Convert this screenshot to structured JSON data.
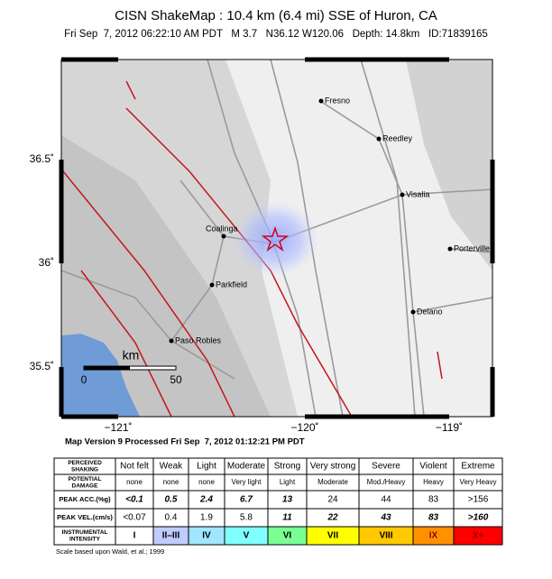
{
  "header": {
    "title": "CISN ShakeMap : 10.4 km (6.4 mi) SSE of Huron, CA",
    "subtitle": "Fri Sep  7, 2012 06:22:10 AM PDT   M 3.7   N36.12 W120.06   Depth: 14.8km   ID:71839165"
  },
  "map": {
    "lat_labels": [
      "36.5˚",
      "36˚",
      "35.5˚"
    ],
    "lon_labels": [
      "−121˚",
      "−120˚",
      "−119˚"
    ],
    "cities": [
      "Fresno",
      "Reedley",
      "Visalia",
      "Coalinga",
      "Porterville",
      "Parkfield",
      "Delano",
      "Paso Robles"
    ],
    "scale": {
      "unit": "km",
      "labels": [
        "0",
        "50"
      ]
    }
  },
  "map_version": "Map Version 9 Processed Fri Sep  7, 2012 01:12:21 PM PDT",
  "table": {
    "row_headers": [
      [
        "PERCEIVED",
        "SHAKING"
      ],
      [
        "POTENTIAL",
        "DAMAGE"
      ],
      [
        "PEAK ACC.(%g)"
      ],
      [
        "PEAK VEL.(cm/s)"
      ],
      [
        "INSTRUMENTAL",
        "INTENSITY"
      ]
    ],
    "rows": [
      [
        "Not felt",
        "Weak",
        "Light",
        "Moderate",
        "Strong",
        "Very strong",
        "Severe",
        "Violent",
        "Extreme"
      ],
      [
        "none",
        "none",
        "none",
        "Very light",
        "Light",
        "Moderate",
        "Mod./Heavy",
        "Heavy",
        "Very Heavy"
      ],
      [
        "<0.1",
        "0.5",
        "2.4",
        "6.7",
        "13",
        "24",
        "44",
        "83",
        ">156"
      ],
      [
        "<0.07",
        "0.4",
        "1.9",
        "5.8",
        "11",
        "22",
        "43",
        "83",
        ">160"
      ],
      [
        "I",
        "II–III",
        "IV",
        "V",
        "VI",
        "VII",
        "VIII",
        "IX",
        "X+"
      ]
    ],
    "intensity_colors": [
      "#ffffff",
      "#bfccff",
      "#a0e6ff",
      "#80ffff",
      "#7aff93",
      "#ffff00",
      "#ffc800",
      "#ff9100",
      "#ff0000"
    ]
  },
  "footnote": "Scale based upon Wald, et al.; 1999"
}
